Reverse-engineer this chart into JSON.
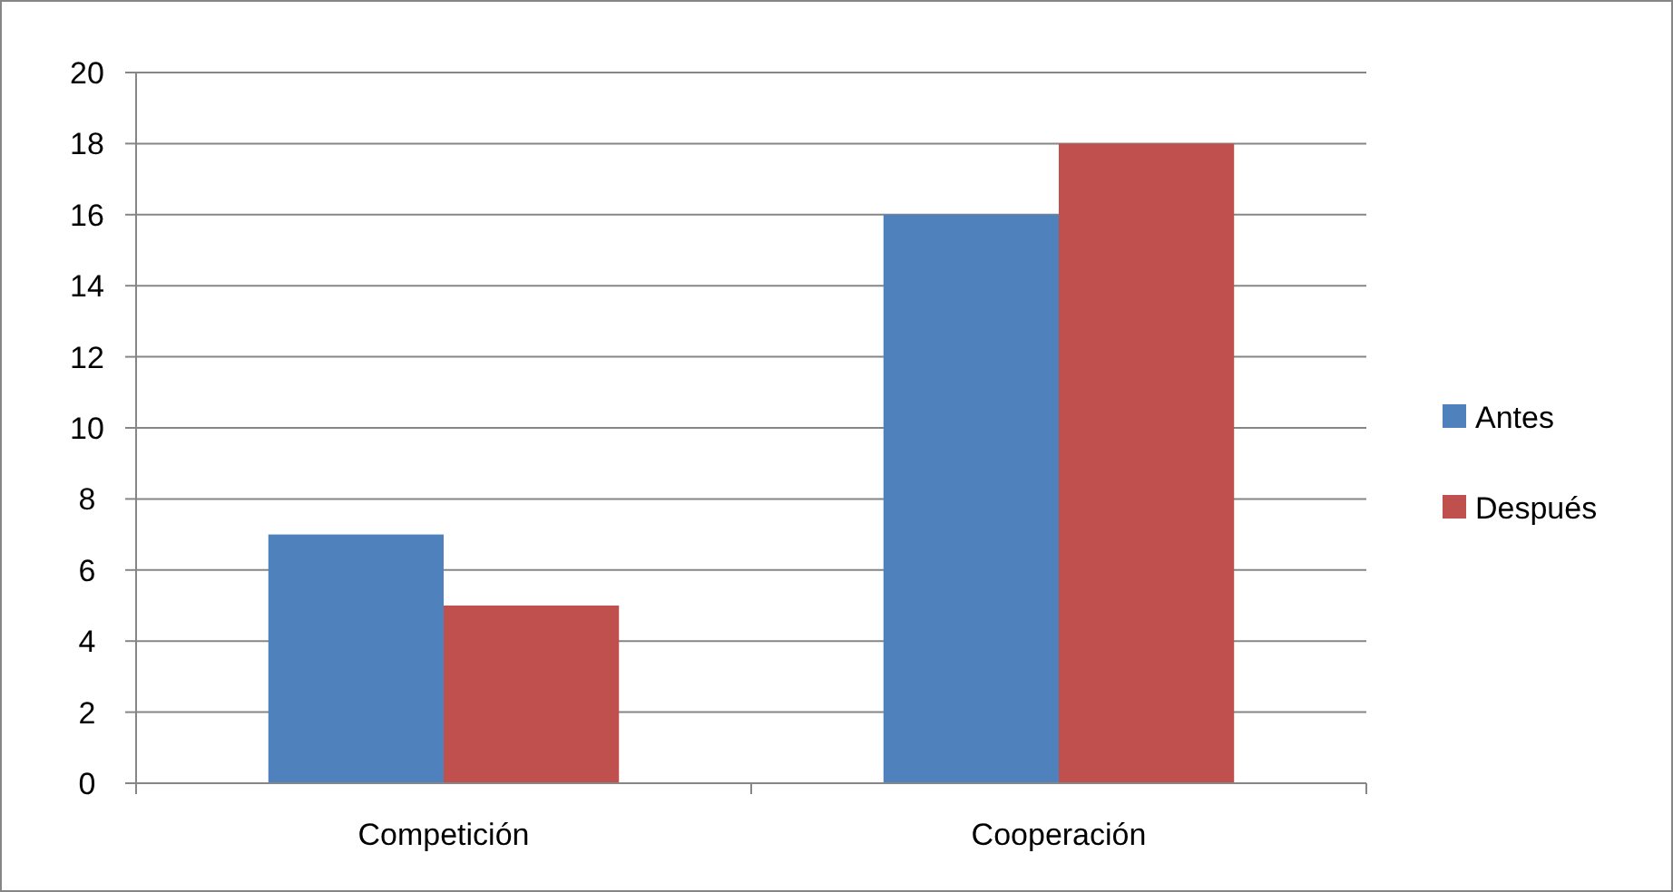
{
  "chart_data": {
    "type": "bar",
    "categories": [
      "Competición",
      "Cooperación"
    ],
    "series": [
      {
        "name": "Antes",
        "color": "#4f81bd",
        "values": [
          7,
          16
        ]
      },
      {
        "name": "Después",
        "color": "#c0504d",
        "values": [
          5,
          18
        ]
      }
    ],
    "ylim": [
      0,
      20
    ],
    "yticks": [
      0,
      2,
      4,
      6,
      8,
      10,
      12,
      14,
      16,
      18,
      20
    ],
    "grid": "y",
    "legend": "right"
  }
}
